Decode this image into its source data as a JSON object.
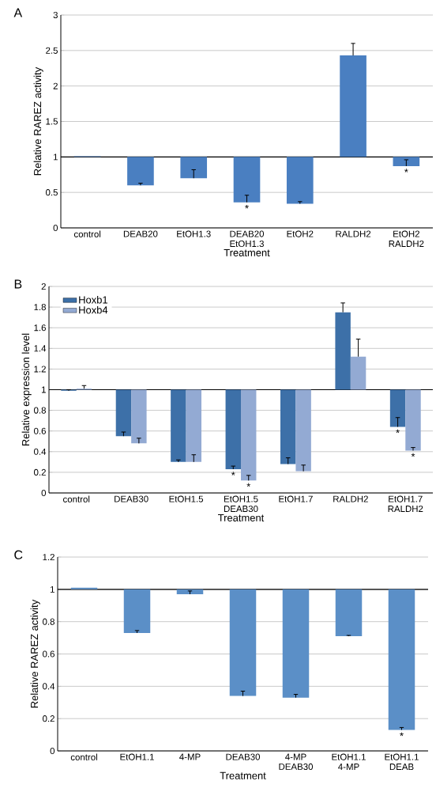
{
  "chart_data": [
    {
      "type": "bar",
      "title": "A",
      "xlabel": "Treatment",
      "ylabel": "Relative RAREZ activity",
      "categories": [
        "control",
        "DEAB20",
        "EtOH1.3",
        "DEAB20 EtOH1.3",
        "EtOH2",
        "RALDH2",
        "EtOH2 RALDH2"
      ],
      "values": [
        0.01,
        -0.4,
        -0.3,
        -0.64,
        -0.66,
        1.43,
        -0.13
      ],
      "base": [
        1,
        1,
        1,
        1,
        1,
        1,
        1
      ],
      "errors": [
        null,
        [
          0.6,
          0.63
        ],
        [
          0.7,
          0.82
        ],
        [
          0.36,
          0.46
        ],
        [
          0.34,
          0.37
        ],
        [
          2.43,
          2.6
        ],
        [
          0.87,
          0.96
        ]
      ],
      "color": "#4a7fc1",
      "ylim": [
        0,
        3
      ],
      "yticks": [
        0,
        0.5,
        1,
        1.5,
        2,
        2.5,
        3
      ],
      "grid": "y",
      "ref_lines": [
        {
          "axis": "y",
          "value": 1,
          "color": "#000000"
        }
      ],
      "annotations": [
        {
          "text": "*",
          "x": "DEAB20 EtOH1.3",
          "y": 0.36
        },
        {
          "text": "*",
          "x": "EtOH2 RALDH2",
          "y": 0.87
        }
      ]
    },
    {
      "type": "bar",
      "title": "B",
      "xlabel": "Treatment",
      "ylabel": "Relative expression level",
      "categories": [
        "control",
        "DEAB30",
        "EtOH1.5",
        "EtOH1.5 DEAB30",
        "EtOH1.7",
        "RALDH2",
        "EtOH1.7 RALDH2"
      ],
      "series": [
        {
          "name": "Hoxb1",
          "color": "#3d70a8",
          "values": [
            -0.01,
            -0.45,
            -0.7,
            -0.77,
            -0.72,
            0.75,
            -0.36
          ],
          "base": [
            1,
            1,
            1,
            1,
            1,
            1,
            1
          ],
          "errors": [
            [
              0.99,
              1.0
            ],
            [
              0.55,
              0.59
            ],
            [
              0.3,
              0.32
            ],
            [
              0.23,
              0.26
            ],
            [
              0.28,
              0.34
            ],
            [
              1.75,
              1.84
            ],
            [
              0.64,
              0.73
            ]
          ]
        },
        {
          "name": "Hoxb4",
          "color": "#93aad3",
          "values": [
            0.01,
            -0.52,
            -0.7,
            -0.88,
            -0.79,
            0.32,
            -0.59
          ],
          "base": [
            1,
            1,
            1,
            1,
            1,
            1,
            1
          ],
          "errors": [
            [
              1.01,
              1.04
            ],
            [
              0.48,
              0.53
            ],
            [
              0.3,
              0.37
            ],
            [
              0.12,
              0.17
            ],
            [
              0.21,
              0.27
            ],
            [
              1.32,
              1.49
            ],
            [
              0.41,
              0.44
            ]
          ]
        }
      ],
      "ylim": [
        0,
        2
      ],
      "yticks": [
        0,
        0.2,
        0.4,
        0.6,
        0.8,
        1,
        1.2,
        1.4,
        1.6,
        1.8,
        2
      ],
      "grid": "y",
      "legend": "top left",
      "ref_lines": [
        {
          "axis": "y",
          "value": 1,
          "color": "#000000"
        }
      ],
      "annotations": [
        {
          "text": "*",
          "x": "EtOH1.5 DEAB30",
          "y": 0.23
        },
        {
          "text": "*",
          "x": "EtOH1.5 DEAB30",
          "y": 0.12
        },
        {
          "text": "*",
          "x": "EtOH1.7 RALDH2",
          "y": 0.64
        },
        {
          "text": "*",
          "x": "EtOH1.7 RALDH2",
          "y": 0.41
        }
      ]
    },
    {
      "type": "bar",
      "title": "C",
      "xlabel": "Treatment",
      "ylabel": "Relative RAREZ activity",
      "categories": [
        "control",
        "EtOH1.1",
        "4-MP",
        "DEAB30",
        "4-MP DEAB30",
        "EtOH1.1 4-MP",
        "EtOH1.1 DEAB"
      ],
      "values": [
        0.01,
        -0.27,
        -0.03,
        -0.66,
        -0.67,
        -0.29,
        -0.87
      ],
      "base": [
        1,
        1,
        1,
        1,
        1,
        1,
        1
      ],
      "errors": [
        null,
        [
          0.73,
          0.745
        ],
        [
          0.97,
          0.99
        ],
        [
          0.34,
          0.37
        ],
        [
          0.33,
          0.35
        ],
        [
          0.71,
          0.715
        ],
        [
          0.13,
          0.145
        ]
      ],
      "color": "#5b8fc7",
      "ylim": [
        0,
        1.2
      ],
      "yticks": [
        0,
        0.2,
        0.4,
        0.6,
        0.8,
        1,
        1.2
      ],
      "grid": "y",
      "ref_lines": [
        {
          "axis": "y",
          "value": 1,
          "color": "#000000"
        }
      ],
      "annotations": [
        {
          "text": "*",
          "x": "EtOH1.1 DEAB",
          "y": 0.13
        }
      ]
    }
  ]
}
